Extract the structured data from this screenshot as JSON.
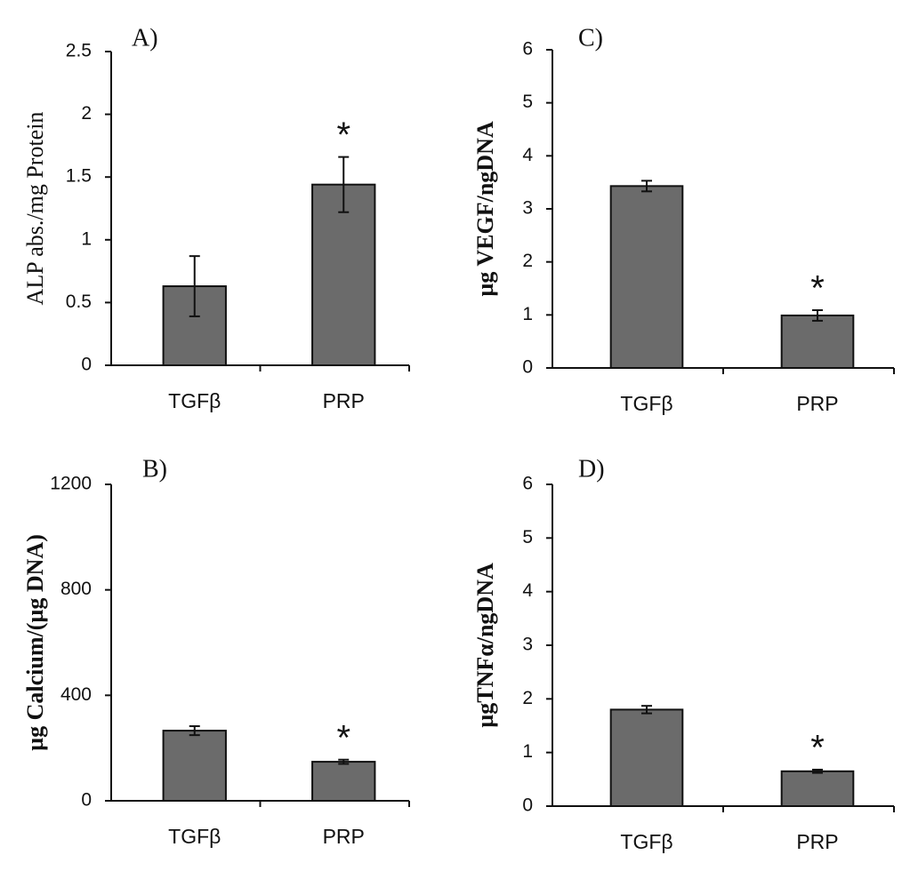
{
  "chart_data": [
    {
      "type": "bar",
      "title": "A)",
      "y_label": "ALP abs./mg Protein",
      "categories": [
        "TGFβ",
        "PRP"
      ],
      "values": [
        0.63,
        1.44
      ],
      "errors": [
        0.24,
        0.22
      ],
      "annotations": [
        null,
        "*"
      ],
      "color": "#6b6b6b",
      "ylim": [
        0,
        2.5
      ],
      "yticks": [
        0,
        0.5,
        1,
        1.5,
        2,
        2.5
      ]
    },
    {
      "type": "bar",
      "title": "C)",
      "y_label": "µg VEGF/ngDNA",
      "categories": [
        "TGFβ",
        "PRP"
      ],
      "values": [
        3.43,
        0.99
      ],
      "errors": [
        0.1,
        0.1
      ],
      "annotations": [
        null,
        "*"
      ],
      "color": "#6b6b6b",
      "ylim": [
        0,
        6
      ],
      "yticks": [
        0,
        1,
        2,
        3,
        4,
        5,
        6
      ]
    },
    {
      "type": "bar",
      "title": "B)",
      "y_label": "µg Calcium/(µg DNA)",
      "categories": [
        "TGFβ",
        "PRP"
      ],
      "values": [
        266,
        148
      ],
      "errors": [
        17,
        8
      ],
      "annotations": [
        null,
        "*"
      ],
      "color": "#6b6b6b",
      "ylim": [
        0,
        1200
      ],
      "yticks": [
        0,
        400,
        800,
        1200
      ]
    },
    {
      "type": "bar",
      "title": "D)",
      "y_label": "µgTNFα/ngDNA",
      "categories": [
        "TGFβ",
        "PRP"
      ],
      "values": [
        1.8,
        0.65
      ],
      "errors": [
        0.07,
        0.03
      ],
      "annotations": [
        null,
        "*"
      ],
      "color": "#6b6b6b",
      "ylim": [
        0,
        6
      ],
      "yticks": [
        0,
        1,
        2,
        3,
        4,
        5,
        6
      ]
    }
  ]
}
